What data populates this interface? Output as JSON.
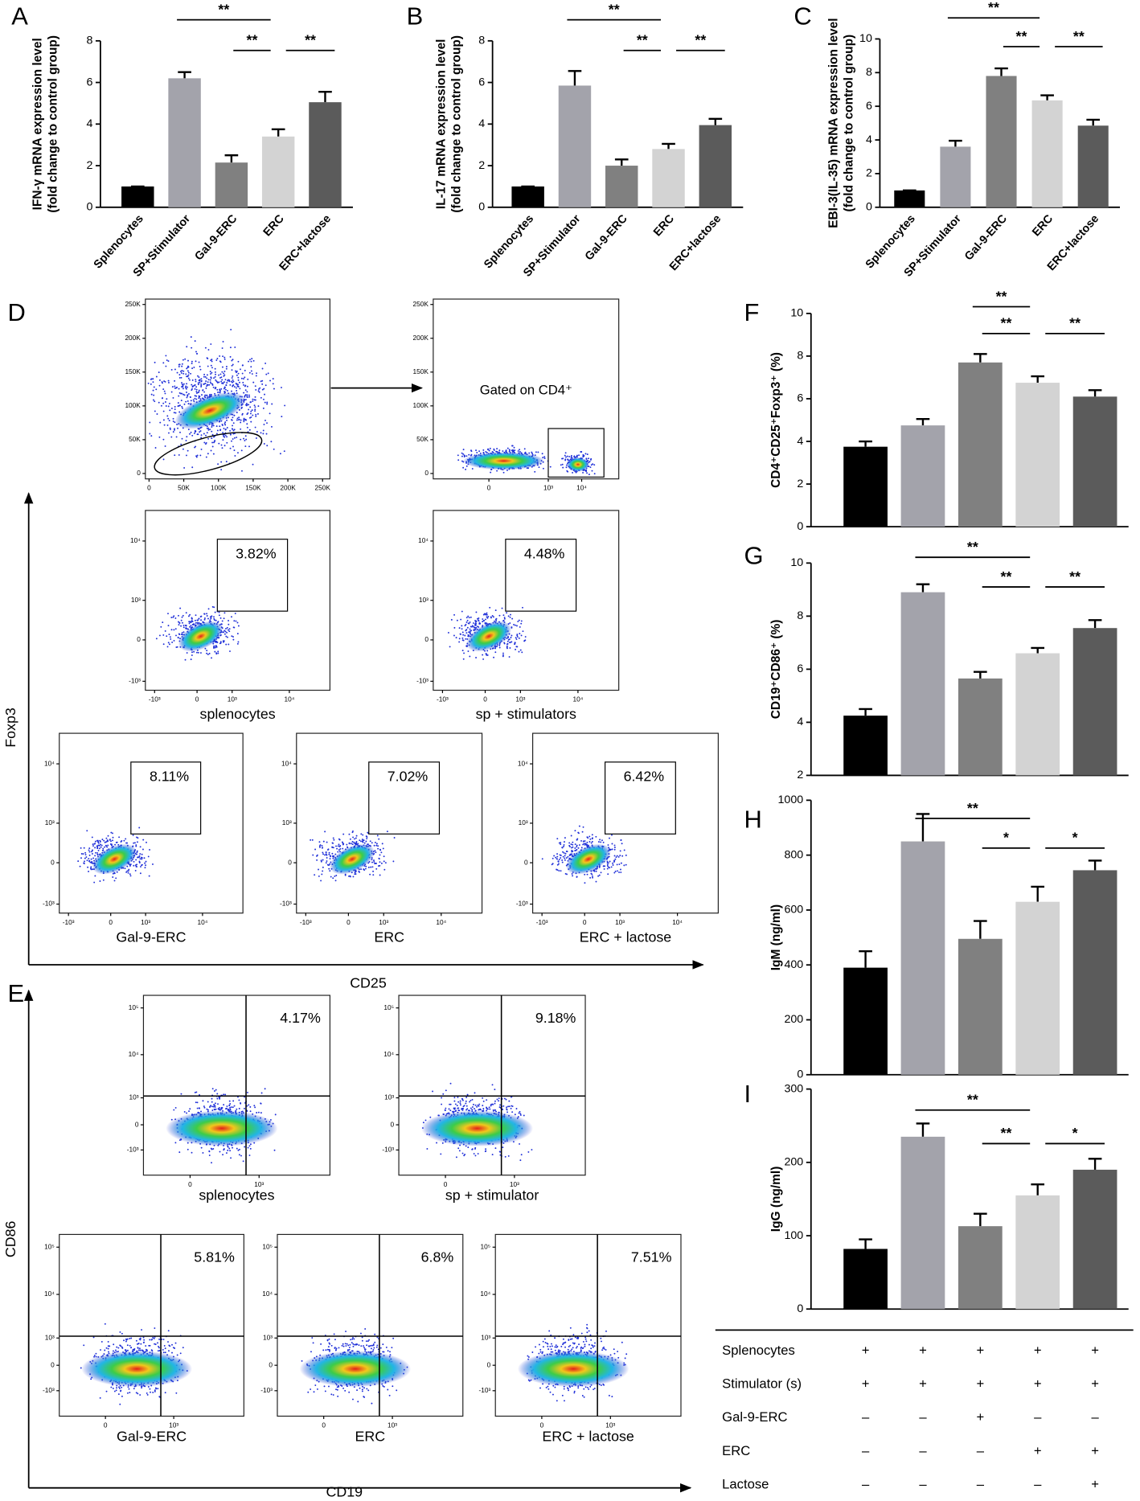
{
  "chart_data": [
    {
      "type": "bar",
      "panel": "A",
      "y_label": [
        "IFN-γ mRNA expression level",
        "(fold change to control group)"
      ],
      "categories": [
        "Splenocytes",
        "SP+Stimulator",
        "Gal-9-ERC",
        "ERC",
        "ERC+lactose"
      ],
      "values": [
        1,
        6.2,
        2.15,
        3.4,
        5.05
      ],
      "errors": [
        0,
        0.3,
        0.35,
        0.35,
        0.5
      ],
      "colors": [
        "#000000",
        "#a3a3ab",
        "#808080",
        "#d3d3d3",
        "#5b5b5b"
      ],
      "ylim": [
        0,
        8
      ],
      "yticks": [
        0,
        2,
        4,
        6,
        8
      ],
      "comparisons": [
        {
          "groups": [
            1,
            3
          ],
          "label": "**"
        },
        {
          "groups": [
            2,
            3
          ],
          "label": "**"
        },
        {
          "groups": [
            3,
            4
          ],
          "label": "**"
        }
      ]
    },
    {
      "type": "bar",
      "panel": "B",
      "y_label": [
        "IL-17 mRNA expression level",
        "(fold change to control group)"
      ],
      "categories": [
        "Splenocytes",
        "SP+Stimulator",
        "Gal-9-ERC",
        "ERC",
        "ERC+lactose"
      ],
      "values": [
        1,
        5.85,
        2.0,
        2.8,
        3.95
      ],
      "errors": [
        0,
        0.7,
        0.3,
        0.25,
        0.3
      ],
      "colors": [
        "#000000",
        "#a3a3ab",
        "#808080",
        "#d3d3d3",
        "#5b5b5b"
      ],
      "ylim": [
        0,
        8
      ],
      "yticks": [
        0,
        2,
        4,
        6,
        8
      ],
      "comparisons": [
        {
          "groups": [
            1,
            3
          ],
          "label": "**"
        },
        {
          "groups": [
            2,
            3
          ],
          "label": "**"
        },
        {
          "groups": [
            3,
            4
          ],
          "label": "**"
        }
      ]
    },
    {
      "type": "bar",
      "panel": "C",
      "y_label": [
        "EBI-3(IL-35) mRNA expression level",
        "(fold change to control group)"
      ],
      "categories": [
        "Splenocytes",
        "SP+Stimulator",
        "Gal-9-ERC",
        "ERC",
        "ERC+lactose"
      ],
      "values": [
        1,
        3.6,
        7.8,
        6.35,
        4.85
      ],
      "errors": [
        0,
        0.35,
        0.45,
        0.3,
        0.35
      ],
      "colors": [
        "#000000",
        "#a3a3ab",
        "#808080",
        "#d3d3d3",
        "#5b5b5b"
      ],
      "ylim": [
        0,
        10
      ],
      "yticks": [
        0,
        2,
        4,
        6,
        8,
        10
      ],
      "comparisons": [
        {
          "groups": [
            1,
            3
          ],
          "label": "**"
        },
        {
          "groups": [
            2,
            3
          ],
          "label": "**"
        },
        {
          "groups": [
            3,
            4
          ],
          "label": "**"
        }
      ]
    },
    {
      "type": "bar",
      "panel": "F",
      "y_label": [
        "CD4⁺CD25⁺Foxp3⁺ (%)"
      ],
      "categories": [
        null,
        null,
        null,
        null,
        null
      ],
      "values": [
        3.75,
        4.75,
        7.7,
        6.75,
        6.1
      ],
      "errors": [
        0.25,
        0.3,
        0.4,
        0.3,
        0.3
      ],
      "colors": [
        "#000000",
        "#a3a3ab",
        "#808080",
        "#d3d3d3",
        "#5b5b5b"
      ],
      "ylim": [
        0,
        10
      ],
      "yticks": [
        0,
        2,
        4,
        6,
        8,
        10
      ],
      "comparisons": [
        {
          "groups": [
            2,
            3
          ],
          "label": "**"
        },
        {
          "groups": [
            2,
            3
          ],
          "label": "**"
        },
        {
          "groups": [
            3,
            4
          ],
          "label": "**"
        }
      ]
    },
    {
      "type": "bar",
      "panel": "G",
      "y_label": [
        "CD19⁺CD86⁺ (%)"
      ],
      "categories": [
        null,
        null,
        null,
        null,
        null
      ],
      "values": [
        4.25,
        8.9,
        5.65,
        6.6,
        7.55
      ],
      "errors": [
        0.25,
        0.3,
        0.25,
        0.2,
        0.3
      ],
      "colors": [
        "#000000",
        "#a3a3ab",
        "#808080",
        "#d3d3d3",
        "#5b5b5b"
      ],
      "ylim": [
        2,
        10
      ],
      "yticks": [
        2,
        4,
        6,
        8,
        10
      ],
      "comparisons": [
        {
          "groups": [
            1,
            3
          ],
          "label": "**"
        },
        {
          "groups": [
            2,
            3
          ],
          "label": "**"
        },
        {
          "groups": [
            3,
            4
          ],
          "label": "**"
        }
      ]
    },
    {
      "type": "bar",
      "panel": "H",
      "y_label": [
        "IgM  (ng/ml)"
      ],
      "categories": [
        null,
        null,
        null,
        null,
        null
      ],
      "values": [
        390,
        850,
        495,
        630,
        745
      ],
      "errors": [
        60,
        100,
        65,
        55,
        35
      ],
      "colors": [
        "#000000",
        "#a3a3ab",
        "#808080",
        "#d3d3d3",
        "#5b5b5b"
      ],
      "ylim": [
        0,
        1000
      ],
      "yticks": [
        0,
        200,
        400,
        600,
        800,
        1000
      ],
      "comparisons": [
        {
          "groups": [
            1,
            3
          ],
          "label": "**"
        },
        {
          "groups": [
            2,
            3
          ],
          "label": "*"
        },
        {
          "groups": [
            3,
            4
          ],
          "label": "*"
        }
      ]
    },
    {
      "type": "bar",
      "panel": "I",
      "y_label": [
        "IgG  (ng/ml)"
      ],
      "categories": [
        null,
        null,
        null,
        null,
        null
      ],
      "values": [
        82,
        235,
        113,
        155,
        190
      ],
      "errors": [
        13,
        18,
        17,
        15,
        15
      ],
      "colors": [
        "#000000",
        "#a3a3ab",
        "#808080",
        "#d3d3d3",
        "#5b5b5b"
      ],
      "ylim": [
        0,
        300
      ],
      "yticks": [
        0,
        100,
        200,
        300
      ],
      "comparisons": [
        {
          "groups": [
            1,
            3
          ],
          "label": "**"
        },
        {
          "groups": [
            2,
            3
          ],
          "label": "**"
        },
        {
          "groups": [
            3,
            4
          ],
          "label": "*"
        }
      ]
    }
  ],
  "flow": {
    "lin_ticks": [
      "0",
      "50K",
      "100K",
      "150K",
      "200K",
      "250K"
    ],
    "log_ticks": [
      "-10³",
      "0",
      "10³",
      "10⁴",
      "10⁵"
    ],
    "D": {
      "panel": "D",
      "y_axis": "Foxp3",
      "x_axis": "CD25",
      "gate_note": "Gated on CD4⁺",
      "plots": [
        {
          "label": "splenocytes",
          "percent": "3.82%"
        },
        {
          "label": "sp + stimulators",
          "percent": "4.48%"
        },
        {
          "label": "Gal-9-ERC",
          "percent": "8.11%"
        },
        {
          "label": "ERC",
          "percent": "7.02%"
        },
        {
          "label": "ERC + lactose",
          "percent": "6.42%"
        }
      ]
    },
    "E": {
      "panel": "E",
      "y_axis": "CD86",
      "x_axis": "CD19",
      "plots": [
        {
          "label": "splenocytes",
          "percent": "4.17%"
        },
        {
          "label": "sp + stimulator",
          "percent": "9.18%"
        },
        {
          "label": "Gal-9-ERC",
          "percent": "5.81%"
        },
        {
          "label": "ERC",
          "percent": "6.8%"
        },
        {
          "label": "ERC + lactose",
          "percent": "7.51%"
        }
      ]
    }
  },
  "table": {
    "rows": [
      {
        "label": "Splenocytes",
        "cells": [
          "+",
          "+",
          "+",
          "+",
          "+"
        ]
      },
      {
        "label": "Stimulator (s)",
        "cells": [
          "+",
          "+",
          "+",
          "+",
          "+"
        ]
      },
      {
        "label": "Gal-9-ERC",
        "cells": [
          "–",
          "–",
          "+",
          "–",
          "–"
        ]
      },
      {
        "label": "ERC",
        "cells": [
          "–",
          "–",
          "–",
          "+",
          "+"
        ]
      },
      {
        "label": "Lactose",
        "cells": [
          "–",
          "–",
          "–",
          "–",
          "+"
        ]
      }
    ]
  }
}
